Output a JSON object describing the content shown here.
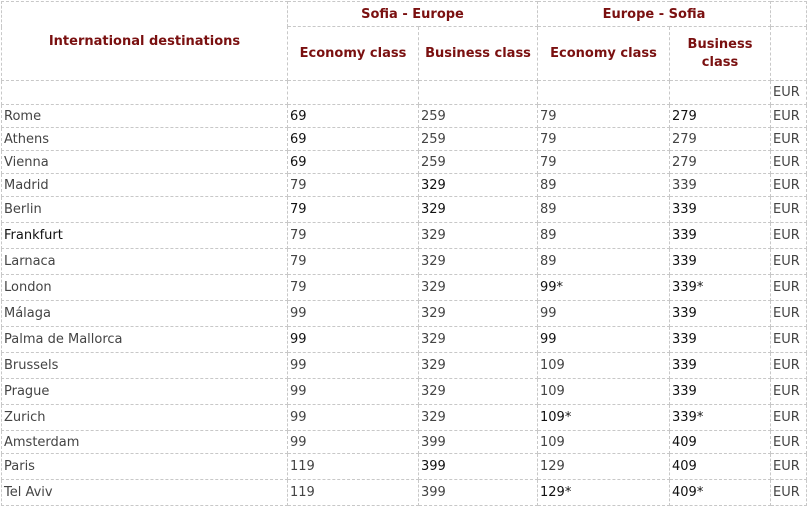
{
  "header": {
    "destinations_label": "International destinations",
    "route_sofia_europe": "Sofia - Europe",
    "route_europe_sofia": "Europe - Sofia",
    "economy_label": "Economy class",
    "business_label": "Business class",
    "business_label_line1": "Business",
    "business_label_line2": "class",
    "currency": "EUR"
  },
  "rows": [
    {
      "city": "Rome",
      "se_eco": "69",
      "se_bus": "259",
      "es_eco": "79",
      "es_bus": "279",
      "cur": "EUR"
    },
    {
      "city": "Athens",
      "se_eco": "69",
      "se_bus": "259",
      "es_eco": "79",
      "es_bus": "279",
      "cur": "EUR"
    },
    {
      "city": "Vienna",
      "se_eco": "69",
      "se_bus": "259",
      "es_eco": "79",
      "es_bus": "279",
      "cur": "EUR"
    },
    {
      "city": "Madrid",
      "se_eco": "79",
      "se_bus": "329",
      "es_eco": "89",
      "es_bus": "339",
      "cur": "EUR"
    },
    {
      "city": "Berlin",
      "se_eco": "79",
      "se_bus": "329",
      "es_eco": "89",
      "es_bus": "339",
      "cur": "EUR"
    },
    {
      "city": "Frankfurt",
      "se_eco": "79",
      "se_bus": "329",
      "es_eco": "89",
      "es_bus": "339",
      "cur": "EUR"
    },
    {
      "city": "Larnaca",
      "se_eco": "79",
      "se_bus": "329",
      "es_eco": "89",
      "es_bus": "339",
      "cur": "EUR"
    },
    {
      "city": "London",
      "se_eco": "79",
      "se_bus": "329",
      "es_eco": "99*",
      "es_bus": "339*",
      "cur": "EUR"
    },
    {
      "city": "Málaga",
      "se_eco": "99",
      "se_bus": "329",
      "es_eco": "99",
      "es_bus": "339",
      "cur": "EUR"
    },
    {
      "city": "Palma de Mallorca",
      "se_eco": "99",
      "se_bus": "329",
      "es_eco": "99",
      "es_bus": "339",
      "cur": "EUR"
    },
    {
      "city": "Brussels",
      "se_eco": "99",
      "se_bus": "329",
      "es_eco": "109",
      "es_bus": "339",
      "cur": "EUR"
    },
    {
      "city": "Prague",
      "se_eco": "99",
      "se_bus": "329",
      "es_eco": "109",
      "es_bus": "339",
      "cur": "EUR"
    },
    {
      "city": "Zurich",
      "se_eco": "99",
      "se_bus": "329",
      "es_eco": "109*",
      "es_bus": "339*",
      "cur": "EUR"
    },
    {
      "city": "Amsterdam",
      "se_eco": "99",
      "se_bus": "399",
      "es_eco": "109",
      "es_bus": "409",
      "cur": "EUR"
    },
    {
      "city": "Paris",
      "se_eco": "119",
      "se_bus": "399",
      "es_eco": "129",
      "es_bus": "409",
      "cur": "EUR"
    },
    {
      "city": "Tel Aviv",
      "se_eco": "119",
      "se_bus": "399",
      "es_eco": "129*",
      "es_bus": "409*",
      "cur": "EUR"
    }
  ]
}
